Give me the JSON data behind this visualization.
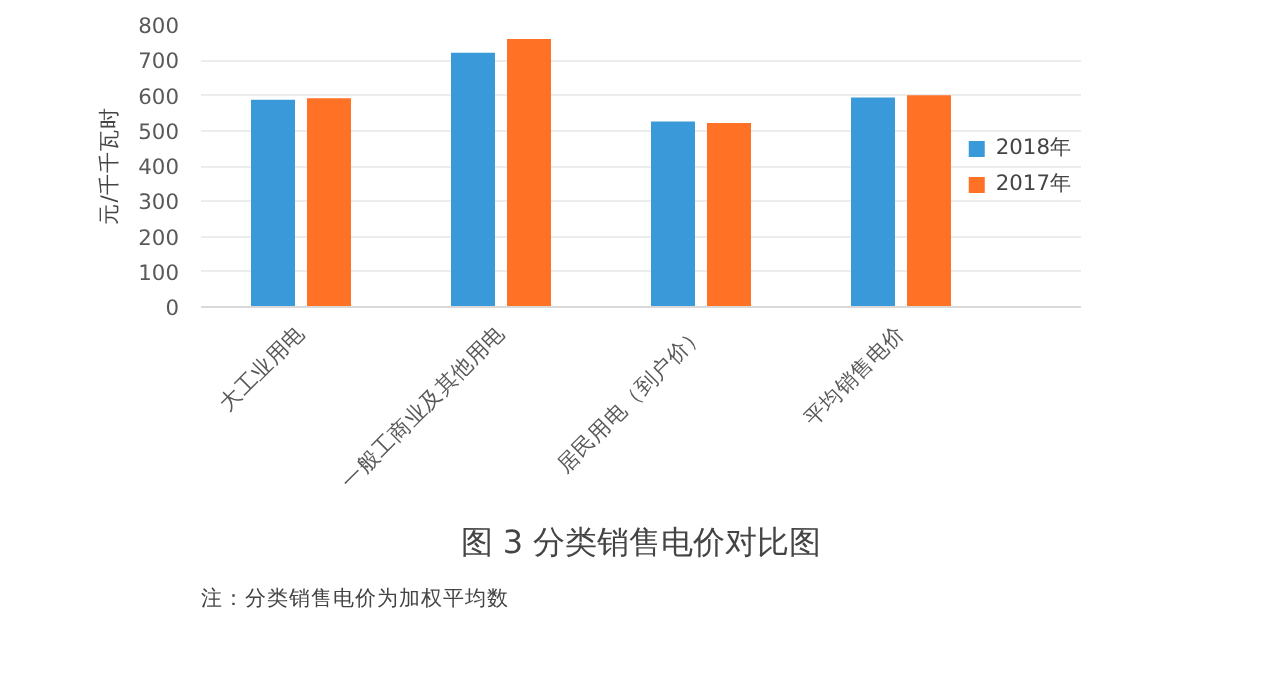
{
  "chart_data": {
    "type": "bar",
    "title": "图 3 分类销售电价对比图",
    "ylabel": "元/千千瓦时",
    "annotations": [
      "注：分类销售电价为加权平均数"
    ],
    "categories": [
      "大工业用电",
      "一般工商业及其他用电",
      "居民用电（到户价）",
      "平均销售电价"
    ],
    "series": [
      {
        "name": "2018年",
        "color": "#3a9ad9",
        "values": [
          588,
          721,
          526,
          594
        ]
      },
      {
        "name": "2017年",
        "color": "#ff7225",
        "values": [
          592,
          760,
          522,
          601
        ]
      }
    ],
    "ylim": [
      0,
      800
    ],
    "yticks": [
      0,
      100,
      200,
      300,
      400,
      500,
      600,
      700,
      800
    ],
    "grid": "y",
    "legend": "right"
  }
}
